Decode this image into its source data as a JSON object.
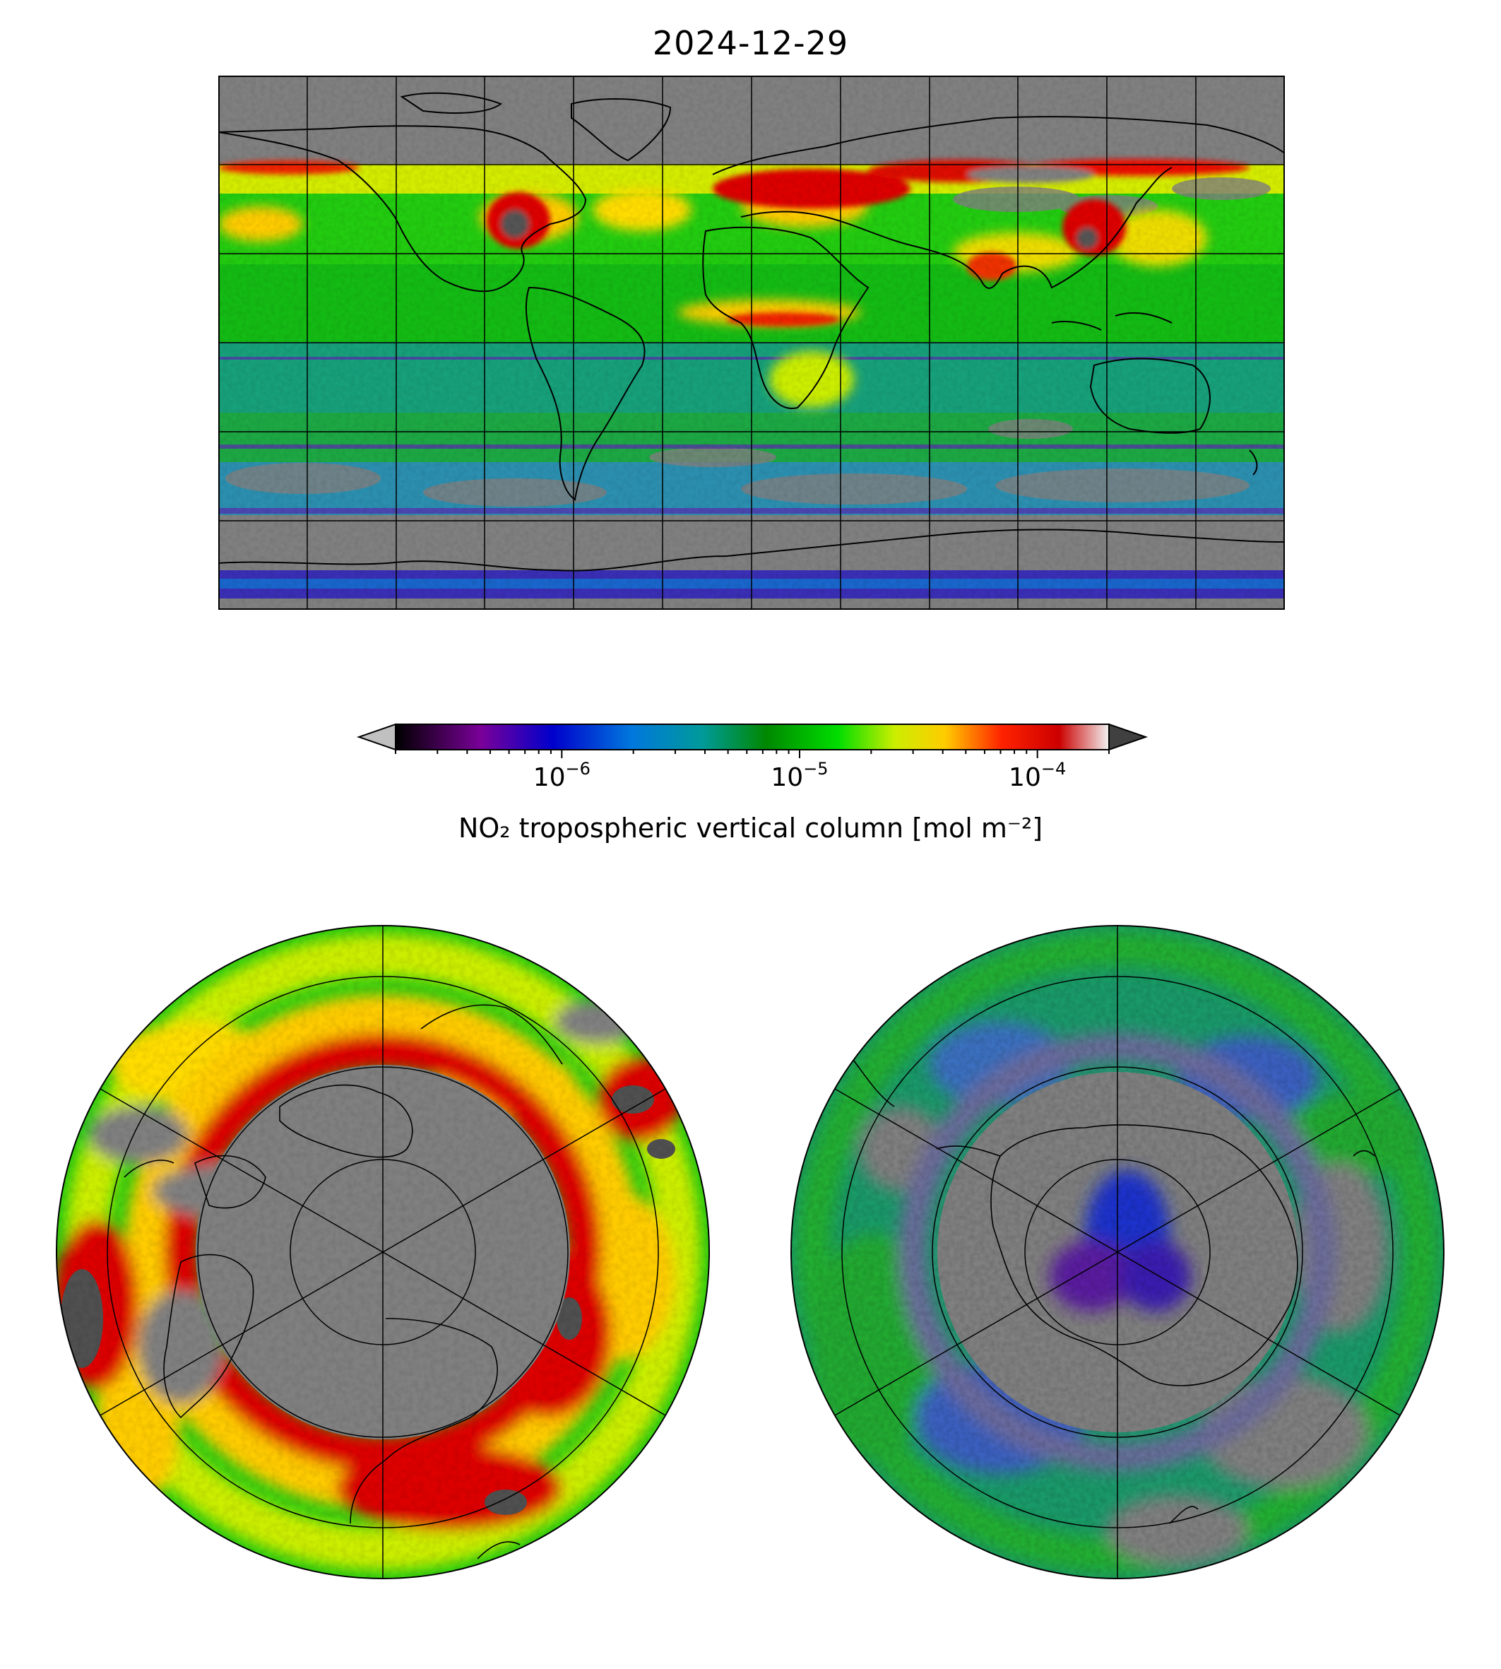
{
  "figure": {
    "title": "2024-12-29"
  },
  "colorbar": {
    "label": "NO₂ tropospheric vertical column [mol m⁻²]",
    "scale": "log",
    "range": [
      2e-07,
      0.0002
    ],
    "extend": "both",
    "under_color": "#c0c0c0",
    "over_color": "#404040",
    "ticks": [
      {
        "value": 1e-06,
        "mantissa": "10",
        "exponent": "−6"
      },
      {
        "value": 1e-05,
        "mantissa": "10",
        "exponent": "−5"
      },
      {
        "value": 0.0001,
        "mantissa": "10",
        "exponent": "−4"
      }
    ],
    "color_stops": [
      "#000000",
      "#7a0099",
      "#0000cc",
      "#0077dd",
      "#009a9a",
      "#008800",
      "#00dd00",
      "#ccee00",
      "#ffcc00",
      "#ff4400",
      "#cc0000",
      "#f2f2f2"
    ]
  },
  "colors": {
    "no_data": "#808080",
    "coastline": "#000000",
    "graticule": "#000000"
  },
  "chart_data": [
    {
      "type": "heatmap",
      "name": "global plate carree map",
      "projection": "PlateCarree",
      "lon_range": [
        -180,
        180
      ],
      "lat_range": [
        -90,
        90
      ],
      "gridlines_lon": [
        -150,
        -120,
        -90,
        -60,
        -30,
        0,
        30,
        60,
        90,
        120,
        150
      ],
      "gridlines_lat": [
        -60,
        -30,
        0,
        30,
        60
      ],
      "no_data_regions": "lat > 63 and lat < -65 (mostly)",
      "high_value_regions": [
        "eastern North America",
        "Europe",
        "northern Eurasia band",
        "eastern China",
        "West Africa",
        "northern Pacific 60N"
      ]
    },
    {
      "type": "heatmap",
      "name": "north polar stereographic map",
      "projection": "NorthPolarStereo",
      "lat_range": [
        0,
        90
      ],
      "graticule_lat": [
        15,
        30,
        45,
        60
      ],
      "graticule_lon": [
        -180,
        -120,
        -60,
        0,
        60,
        120
      ],
      "no_data_region": "north of ~60N",
      "high_value_ring": "~55N-62N"
    },
    {
      "type": "heatmap",
      "name": "south polar stereographic map",
      "projection": "SouthPolarStereo",
      "lat_range": [
        -90,
        0
      ],
      "graticule_lat": [
        -15,
        -30,
        -45,
        -60
      ],
      "graticule_lon": [
        -180,
        -120,
        -60,
        0,
        60,
        120
      ],
      "no_data_region": "Antarctica except interior",
      "low_value_regions": [
        "Southern Ocean",
        "Antarctic interior (blue/purple)"
      ]
    }
  ]
}
